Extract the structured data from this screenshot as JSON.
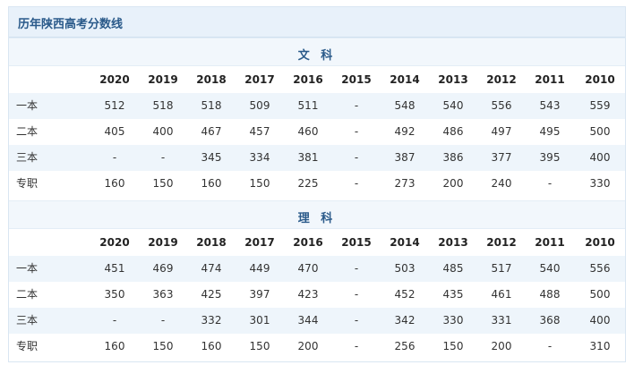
{
  "title": "历年陕西高考分数线",
  "years": [
    "2020",
    "2019",
    "2018",
    "2017",
    "2016",
    "2015",
    "2014",
    "2013",
    "2012",
    "2011",
    "2010"
  ],
  "sections": [
    {
      "name": "文 科",
      "rows": [
        {
          "label": "一本",
          "values": [
            "512",
            "518",
            "518",
            "509",
            "511",
            "-",
            "548",
            "540",
            "556",
            "543",
            "559"
          ]
        },
        {
          "label": "二本",
          "values": [
            "405",
            "400",
            "467",
            "457",
            "460",
            "-",
            "492",
            "486",
            "497",
            "495",
            "500"
          ]
        },
        {
          "label": "三本",
          "values": [
            "-",
            "-",
            "345",
            "334",
            "381",
            "-",
            "387",
            "386",
            "377",
            "395",
            "400"
          ]
        },
        {
          "label": "专职",
          "values": [
            "160",
            "150",
            "160",
            "150",
            "225",
            "-",
            "273",
            "200",
            "240",
            "-",
            "330"
          ]
        }
      ]
    },
    {
      "name": "理 科",
      "rows": [
        {
          "label": "一本",
          "values": [
            "451",
            "469",
            "474",
            "449",
            "470",
            "-",
            "503",
            "485",
            "517",
            "540",
            "556"
          ]
        },
        {
          "label": "二本",
          "values": [
            "350",
            "363",
            "425",
            "397",
            "423",
            "-",
            "452",
            "435",
            "461",
            "488",
            "500"
          ]
        },
        {
          "label": "三本",
          "values": [
            "-",
            "-",
            "332",
            "301",
            "344",
            "-",
            "342",
            "330",
            "331",
            "368",
            "400"
          ]
        },
        {
          "label": "专职",
          "values": [
            "160",
            "150",
            "160",
            "150",
            "200",
            "-",
            "256",
            "150",
            "200",
            "-",
            "310"
          ]
        }
      ]
    }
  ]
}
